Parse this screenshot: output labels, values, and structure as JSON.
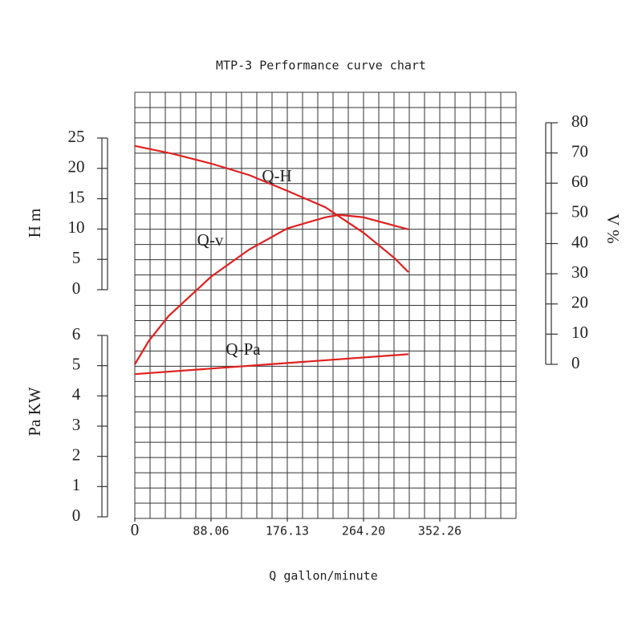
{
  "chart_data": {
    "type": "line",
    "title": "MTP-3 Performance curve chart",
    "xlabel": "Q gallon/minute",
    "ylabel": "H m",
    "y2label": "V %",
    "y3label": "Pa KW",
    "xlim": [
      0,
      440.3
    ],
    "xticks": [
      0,
      88.06,
      176.13,
      {
        "value": 264.2,
        "label": "264.20"
      },
      352.26
    ],
    "ylim": [
      0,
      25
    ],
    "yticks": [
      0,
      5,
      10,
      15,
      20,
      25
    ],
    "y2lim": [
      0,
      80
    ],
    "y2ticks": [
      0,
      10,
      20,
      30,
      40,
      50,
      60,
      70,
      80
    ],
    "y3lim": [
      0,
      6
    ],
    "y3ticks": [
      0,
      1,
      2,
      3,
      4,
      5,
      6
    ],
    "grid": true,
    "series": [
      {
        "name": "Q-H",
        "color": "#e02020",
        "axis": "y",
        "x": [
          0,
          44,
          88,
          132,
          176,
          220,
          264,
          300,
          316
        ],
        "values": [
          23.7,
          22.4,
          20.8,
          18.9,
          16.3,
          13.6,
          9.4,
          5.2,
          2.9
        ]
      },
      {
        "name": "Q-v",
        "color": "#e02020",
        "axis": "y2",
        "x": [
          0,
          16,
          39,
          88,
          132,
          176,
          220,
          236,
          264,
          316
        ],
        "values": [
          0,
          7.7,
          16,
          29,
          38,
          45,
          48.7,
          49.5,
          48.7,
          44.7
        ]
      },
      {
        "name": "Q-Pa",
        "color": "#e02020",
        "axis": "y3",
        "x": [
          0,
          158,
          316
        ],
        "values": [
          4.72,
          5.05,
          5.38
        ]
      }
    ]
  }
}
